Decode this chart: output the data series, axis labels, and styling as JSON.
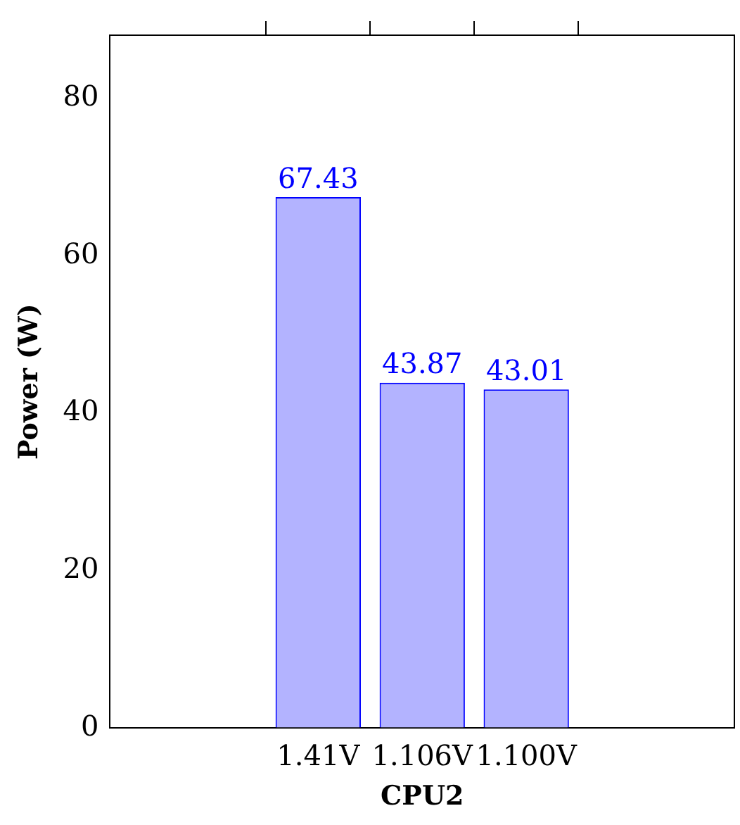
{
  "chart_data": {
    "type": "bar",
    "xlabel": "CPU2",
    "ylabel": "Power (W)",
    "categories": [
      "1.41V",
      "1.106V",
      "1.100V"
    ],
    "values": [
      67.43,
      43.87,
      43.01
    ],
    "color": "#b3b3ff",
    "ylim": [
      0,
      88
    ],
    "yticks": [
      0,
      20,
      40,
      60,
      80
    ],
    "data_labels": true,
    "legend": false
  }
}
